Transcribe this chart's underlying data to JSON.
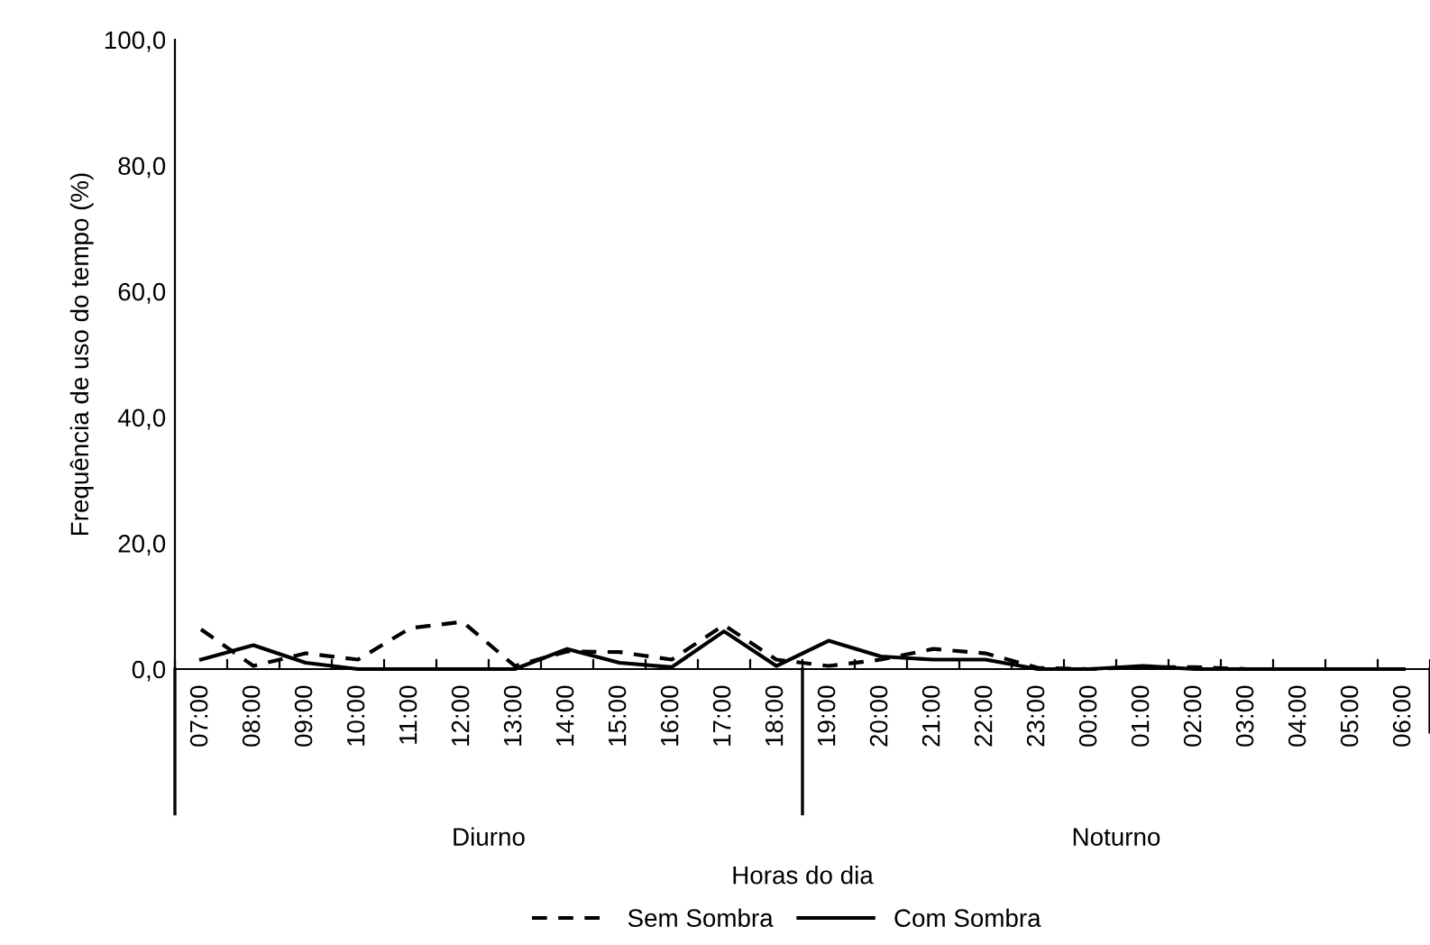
{
  "chart_data": {
    "type": "line",
    "xlabel": "Horas do dia",
    "ylabel": "Frequência de uso do tempo (%)",
    "categories": [
      "07:00",
      "08:00",
      "09:00",
      "10:00",
      "11:00",
      "12:00",
      "13:00",
      "14:00",
      "15:00",
      "16:00",
      "17:00",
      "18:00",
      "19:00",
      "20:00",
      "21:00",
      "22:00",
      "23:00",
      "00:00",
      "01:00",
      "02:00",
      "03:00",
      "04:00",
      "05:00",
      "06:00"
    ],
    "series": [
      {
        "name": "Sem Sombra",
        "color": "#000000",
        "line_style": "dashed",
        "values": [
          6.3,
          0.5,
          2.5,
          1.5,
          6.5,
          7.5,
          0.5,
          2.8,
          2.7,
          1.5,
          7,
          1.5,
          0.5,
          1.5,
          3.2,
          2.5,
          0.2,
          0,
          0.3,
          0.3,
          0,
          0,
          0,
          0
        ]
      },
      {
        "name": "Com Sombra",
        "color": "#000000",
        "line_style": "solid",
        "values": [
          1.5,
          3.8,
          1,
          0,
          0,
          0,
          0,
          3.2,
          1,
          0.3,
          6,
          0.5,
          4.5,
          2,
          1.5,
          1.5,
          0,
          0,
          0.5,
          0,
          0,
          0,
          0,
          0
        ]
      }
    ],
    "annotations": [
      "Diurno",
      "Noturno"
    ],
    "ylim": [
      0,
      100
    ],
    "yticks": [
      {
        "value": 0,
        "label": "0,0"
      },
      {
        "value": 20,
        "label": "20,0"
      },
      {
        "value": 40,
        "label": "40,0"
      },
      {
        "value": 60,
        "label": "60,0"
      },
      {
        "value": 80,
        "label": "80,0"
      },
      {
        "value": 100,
        "label": "100,0"
      }
    ],
    "grid": false,
    "legend": "bottom"
  }
}
